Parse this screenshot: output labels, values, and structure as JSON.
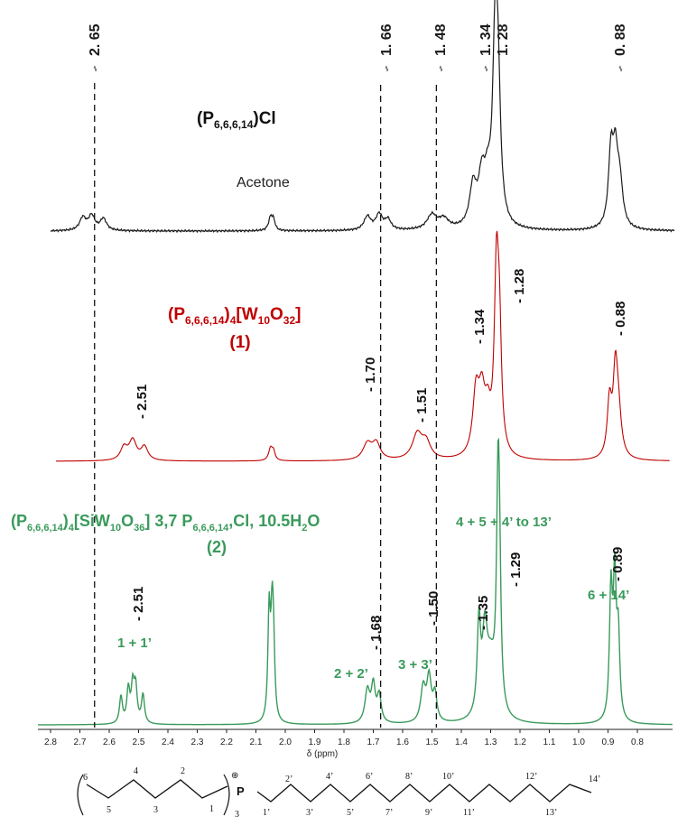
{
  "chart_data": {
    "type": "line",
    "xlabel": "δ (ppm)",
    "x_reversed": true,
    "xlim": [
      2.8,
      0.8
    ],
    "x_ticks": [
      "2.8",
      "2.7",
      "2.6",
      "2.5",
      "2.4",
      "2.3",
      "2.2",
      "2.1",
      "2.0",
      "1.9",
      "1.8",
      "1.7",
      "1.6",
      "1.5",
      "1.4",
      "1.3",
      "1.2",
      "1.1",
      "1.0",
      "0.9",
      "0.8"
    ],
    "top_peak_labels": [
      "2. 65",
      "1. 66",
      "1. 48",
      "1. 34",
      "1. 28",
      "0. 88"
    ],
    "reference_lines_ppm": [
      2.65,
      1.675,
      1.485
    ],
    "series": [
      {
        "color": "#1a1a1a",
        "label_main": "(P",
        "label_sub": "6,6,6,14",
        "label_tail": ")Cl",
        "solvent_label": "Acetone",
        "peaks_ppm": [
          2.65,
          2.05,
          1.7,
          1.66,
          1.48,
          1.34,
          1.28,
          0.88
        ]
      },
      {
        "color": "#c00000",
        "label_line1_parts": [
          "(P",
          "6,6,6,14",
          ")",
          "4",
          "[W",
          "10",
          "O",
          "32",
          "]"
        ],
        "label_line2": "(1)",
        "peak_labels": [
          "- 2.51",
          "- 1.70",
          "- 1.51",
          "- 1.34",
          "- 1.28",
          "- 0.88"
        ],
        "peaks_ppm": [
          2.51,
          2.05,
          1.7,
          1.51,
          1.34,
          1.28,
          0.88
        ]
      },
      {
        "color": "#3a9a5b",
        "label_line1_parts": [
          "(P",
          "6,6,6,14",
          ")",
          "4",
          "[SiW",
          "10",
          "O",
          "36",
          "] 3,7 P",
          "6,6,6,14",
          ",Cl, 10.5H",
          "2",
          "O"
        ],
        "label_line2": "(2)",
        "peak_labels": [
          "- 2.51",
          "- 1.68",
          "- 1.50",
          "- 1.35",
          "- 1.29",
          "- 0.89"
        ],
        "assignments": [
          "1 + 1’",
          "2 + 2’",
          "3 + 3’",
          "4 + 5 + 4’ to 13’",
          "6 + 14’"
        ],
        "peaks_ppm": [
          2.51,
          2.05,
          1.68,
          1.5,
          1.35,
          1.29,
          0.89
        ]
      }
    ],
    "structure": {
      "charge": "⊕",
      "atom": "P",
      "subscript": "3",
      "hexyl_labels": [
        "6",
        "5",
        "4",
        "3",
        "2",
        "1"
      ],
      "tetradecyl_labels": [
        "1’",
        "2’",
        "3’",
        "4’",
        "5’",
        "6’",
        "7’",
        "8’",
        "9’",
        "10’",
        "11’",
        "12’",
        "13’",
        "14’"
      ]
    }
  }
}
